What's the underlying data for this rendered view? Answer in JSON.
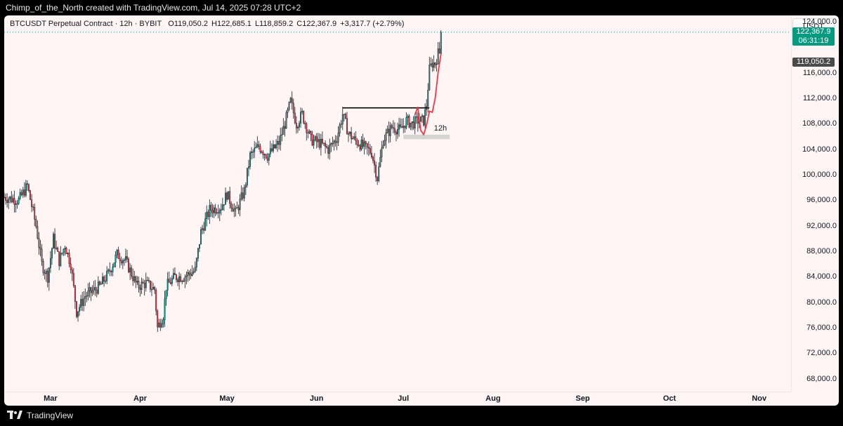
{
  "header": {
    "caption": "Chimp_of_the_North created with TradingView.com, Jul 14, 2025 07:28 UTC+2"
  },
  "legend": {
    "symbol": "BTCUSDT Perpetual Contract · 12h · BYBIT",
    "open": "O119,050.2",
    "high": "H122,685.1",
    "low": "L118,859.2",
    "close": "C122,367.9",
    "change": "+3,317.7 (+2.79%)"
  },
  "currency": "USDT",
  "price_tags": {
    "last_price": "122,367.9",
    "countdown": "06:31:19",
    "open_price": "119,050.2"
  },
  "annotation_label": "12h",
  "footer": {
    "brand": "TradingView"
  },
  "colors": {
    "up": "#089981",
    "down": "#f23645",
    "background": "#fff5f5",
    "last_price_tag": "#089981",
    "open_price_tag": "#4a4a4a",
    "curve": "#f23645",
    "level_line": "#000000",
    "zone": "#d6d3d3"
  },
  "chart_data": {
    "type": "candlestick",
    "title": "BTCUSDT Perpetual Contract · 12h · BYBIT",
    "ylim": [
      66000,
      125000
    ],
    "yticks": [
      124000,
      116000,
      112000,
      108000,
      104000,
      100000,
      96000,
      92000,
      88000,
      84000,
      80000,
      76000,
      72000,
      68000
    ],
    "ytick_labels": [
      "124,000.0",
      "116,000.0",
      "112,000.0",
      "108,000.0",
      "104,000.0",
      "100,000.0",
      "96,000.0",
      "92,000.0",
      "88,000.0",
      "84,000.0",
      "80,000.0",
      "76,000.0",
      "72,000.0",
      "68,000.0"
    ],
    "xlim": [
      "2025-02-13",
      "2025-11-12"
    ],
    "xticks": [
      {
        "date": "2025-03-01",
        "label": "Mar"
      },
      {
        "date": "2025-04-01",
        "label": "Apr"
      },
      {
        "date": "2025-05-01",
        "label": "May"
      },
      {
        "date": "2025-06-01",
        "label": "Jun"
      },
      {
        "date": "2025-07-01",
        "label": "Jul"
      },
      {
        "date": "2025-08-01",
        "label": "Aug"
      },
      {
        "date": "2025-09-01",
        "label": "Sep"
      },
      {
        "date": "2025-10-01",
        "label": "Oct"
      },
      {
        "date": "2025-11-01",
        "label": "Nov"
      }
    ],
    "first_candle": "2025-02-13",
    "last_candle": "2025-07-14",
    "candle_interval": "12h",
    "close_path": [
      [
        "2025-02-13",
        96500
      ],
      [
        "2025-02-18",
        96000
      ],
      [
        "2025-02-21",
        98300
      ],
      [
        "2025-02-24",
        92000
      ],
      [
        "2025-02-26",
        86000
      ],
      [
        "2025-02-28",
        84000
      ],
      [
        "2025-03-02",
        90000
      ],
      [
        "2025-03-04",
        86500
      ],
      [
        "2025-03-06",
        89000
      ],
      [
        "2025-03-08",
        86000
      ],
      [
        "2025-03-10",
        78500
      ],
      [
        "2025-03-13",
        81000
      ],
      [
        "2025-03-18",
        82500
      ],
      [
        "2025-03-21",
        84500
      ],
      [
        "2025-03-24",
        87500
      ],
      [
        "2025-03-27",
        86500
      ],
      [
        "2025-03-31",
        82500
      ],
      [
        "2025-04-03",
        83000
      ],
      [
        "2025-04-06",
        82000
      ],
      [
        "2025-04-07",
        76000
      ],
      [
        "2025-04-09",
        78000
      ],
      [
        "2025-04-10",
        82500
      ],
      [
        "2025-04-13",
        84000
      ],
      [
        "2025-04-16",
        84000
      ],
      [
        "2025-04-20",
        85000
      ],
      [
        "2025-04-22",
        91000
      ],
      [
        "2025-04-25",
        94500
      ],
      [
        "2025-04-29",
        95000
      ],
      [
        "2025-05-01",
        97000
      ],
      [
        "2025-05-04",
        94000
      ],
      [
        "2025-05-07",
        97500
      ],
      [
        "2025-05-09",
        103000
      ],
      [
        "2025-05-12",
        104500
      ],
      [
        "2025-05-15",
        103000
      ],
      [
        "2025-05-19",
        105000
      ],
      [
        "2025-05-21",
        108000
      ],
      [
        "2025-05-23",
        111500
      ],
      [
        "2025-05-25",
        108000
      ],
      [
        "2025-05-27",
        109500
      ],
      [
        "2025-05-30",
        105500
      ],
      [
        "2025-06-02",
        105000
      ],
      [
        "2025-06-05",
        104000
      ],
      [
        "2025-06-08",
        105800
      ],
      [
        "2025-06-10",
        109500
      ],
      [
        "2025-06-12",
        106500
      ],
      [
        "2025-06-14",
        105500
      ],
      [
        "2025-06-17",
        104500
      ],
      [
        "2025-06-20",
        103500
      ],
      [
        "2025-06-22",
        99500
      ],
      [
        "2025-06-24",
        105500
      ],
      [
        "2025-06-27",
        107500
      ],
      [
        "2025-06-30",
        107000
      ],
      [
        "2025-07-02",
        108500
      ],
      [
        "2025-07-04",
        108000
      ],
      [
        "2025-07-06",
        108500
      ],
      [
        "2025-07-08",
        108500
      ],
      [
        "2025-07-09",
        111000
      ],
      [
        "2025-07-10",
        116500
      ],
      [
        "2025-07-11",
        117500
      ],
      [
        "2025-07-12",
        117500
      ],
      [
        "2025-07-13",
        119050
      ],
      [
        "2025-07-14",
        122368
      ]
    ],
    "last_candle_ohlc": {
      "open": 119050.2,
      "high": 122685.1,
      "low": 118859.2,
      "close": 122367.9
    },
    "overlays": {
      "horizontal_level": {
        "from": "2025-06-10",
        "to": "2025-07-10",
        "value": 110500
      },
      "zone": {
        "from": "2025-07-01",
        "to": "2025-07-17",
        "bottom": 105600,
        "top": 106300,
        "label": "12h"
      },
      "curve": [
        [
          "2025-07-05",
          109500
        ],
        [
          "2025-07-06",
          110600
        ],
        [
          "2025-07-07",
          107000
        ],
        [
          "2025-07-08",
          106300
        ],
        [
          "2025-07-09",
          107800
        ],
        [
          "2025-07-10",
          110000
        ],
        [
          "2025-07-11",
          109800
        ],
        [
          "2025-07-12",
          112000
        ],
        [
          "2025-07-13",
          116000
        ],
        [
          "2025-07-14",
          119000
        ]
      ],
      "dotted_price_line": 122367.9
    }
  }
}
